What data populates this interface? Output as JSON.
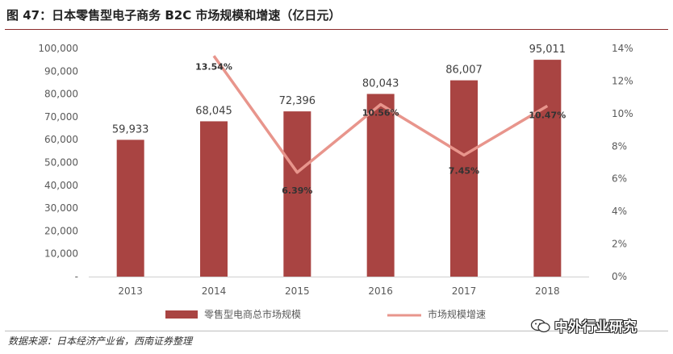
{
  "title": "图 47：日本零售型电子商务 B2C 市场规模和增速（亿日元）",
  "source": "数据来源：日本经济产业省，西南证券整理",
  "watermark": "中外行业研究",
  "colors": {
    "bar": "#a94442",
    "line": "#e8958c",
    "accent_rule": "#8b2a2a"
  },
  "chart_data": {
    "type": "bar",
    "categories": [
      "2013",
      "2014",
      "2015",
      "2016",
      "2017",
      "2018"
    ],
    "series": [
      {
        "name": "零售型电商总市场规模",
        "type": "bar",
        "axis": "left",
        "values": [
          59933,
          68045,
          72396,
          80043,
          86007,
          95011
        ],
        "labels": [
          "59,933",
          "68,045",
          "72,396",
          "80,043",
          "86,007",
          "95,011"
        ]
      },
      {
        "name": "市场规模增速",
        "type": "line",
        "axis": "right",
        "values": [
          null,
          13.54,
          6.39,
          10.56,
          7.45,
          10.47
        ],
        "labels": [
          "",
          "13.54%",
          "6.39%",
          "10.56%",
          "7.45%",
          "10.47%"
        ]
      }
    ],
    "y_left": {
      "lim": [
        0,
        100000
      ],
      "ticks": [
        0,
        10000,
        20000,
        30000,
        40000,
        50000,
        60000,
        70000,
        80000,
        90000,
        100000
      ],
      "tick_labels": [
        "-",
        "10,000",
        "20,000",
        "30,000",
        "40,000",
        "50,000",
        "60,000",
        "70,000",
        "80,000",
        "90,000",
        "100,000"
      ]
    },
    "y_right": {
      "lim": [
        0,
        14
      ],
      "ticks": [
        0,
        2,
        4,
        6,
        8,
        10,
        12,
        14
      ],
      "tick_labels": [
        "0%",
        "2%",
        "4%",
        "6%",
        "8%",
        "10%",
        "12%",
        "14%"
      ]
    },
    "grid": false,
    "legend": {
      "position": "bottom"
    }
  }
}
